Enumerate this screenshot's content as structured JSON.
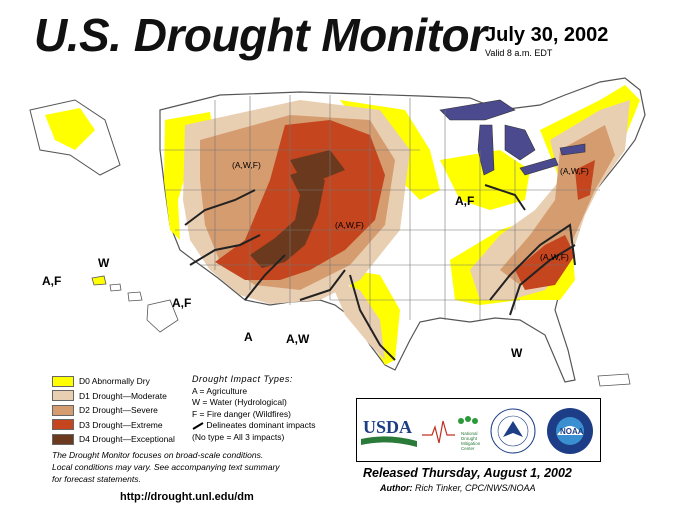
{
  "header": {
    "title": "U.S. Drought Monitor",
    "date": "July 30, 2002",
    "valid": "Valid 8 a.m. EDT"
  },
  "map": {
    "impact_labels": {
      "hawaii_af": "A,F",
      "hawaii_w": "W",
      "west_af": "A,F",
      "southwest_a": "A",
      "southwest_aw": "A,W",
      "southeast_w": "W",
      "ohio_af": "A,F",
      "rockies_awf": "(A,W,F)",
      "plains_awf": "(A,W,F)",
      "mid_atlantic_awf": "(A,W,F)",
      "carolinas_awf": "(A,W,F)"
    },
    "colors": {
      "d0": "#ffff00",
      "d1": "#fcd37f",
      "d2": "#d9a97a",
      "d3": "#c84b1f",
      "d4": "#6e3b1f",
      "lakes": "#4b4a8f",
      "border": "#555555"
    }
  },
  "legend": {
    "items": [
      {
        "label": "D0 Abnormally Dry",
        "color": "#ffff00"
      },
      {
        "label": "D1 Drought—Moderate",
        "color": "#e9cfb2"
      },
      {
        "label": "D2 Drought—Severe",
        "color": "#d59c6f"
      },
      {
        "label": "D3 Drought—Extreme",
        "color": "#c4451e"
      },
      {
        "label": "D4 Drought—Exceptional",
        "color": "#6b3a1e"
      }
    ]
  },
  "impacts": {
    "header": "Drought Impact Types:",
    "a": "A = Agriculture",
    "w": "W = Water (Hydrological)",
    "f": "F = Fire danger (Wildfires)",
    "delineates": "Delineates dominant impacts",
    "none": "(No type = All 3 impacts)"
  },
  "note": {
    "line1": "The Drought Monitor focuses on broad-scale conditions.",
    "line2": "Local conditions may vary. See accompanying text summary",
    "line3": "for forecast statements."
  },
  "url": "http://drought.unl.edu/dm",
  "logos": {
    "usda": "USDA",
    "ndmc_1": "National",
    "ndmc_2": "Drought",
    "ndmc_3": "Mitigation",
    "ndmc_4": "Center",
    "noaa": "NOAA"
  },
  "release": {
    "released": "Released Thursday, August 1, 2002",
    "author_label": "Author:",
    "author": "Rich Tinker, CPC/NWS/NOAA"
  }
}
